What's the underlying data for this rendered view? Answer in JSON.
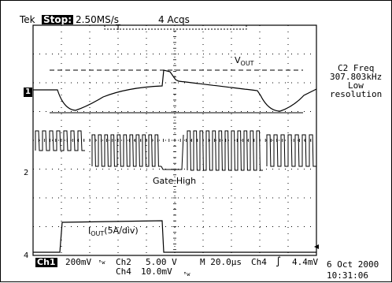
{
  "header": {
    "brand": "Tek",
    "run_state": "Stop:",
    "sample_rate": "2.50MS/s",
    "acqs": "4 Acqs",
    "trigger_marker": "T"
  },
  "right_panel": {
    "meas_title": "C2 Freq",
    "meas_value": "307.803kHz",
    "note_line1": "Low",
    "note_line2": "resolution"
  },
  "annotations": {
    "vout_main": "V",
    "vout_sub": "OUT",
    "gate": "Gate High",
    "iout_main": "I",
    "iout_sub": "OUT",
    "iout_scale": "(5A/div)"
  },
  "channel_markers": {
    "ch1": "1",
    "ch2": "2",
    "ch4": "4"
  },
  "footer": {
    "ch1_label": "Ch1",
    "ch1_scale": "200mV",
    "ch1_bw": "ᴮw",
    "ch2_label": "Ch2",
    "ch2_scale": "5.00 V",
    "ch4_label": "Ch4",
    "ch4_scale": "10.0mV",
    "ch4_bw": "ᴮw",
    "timebase": "M 20.0µs",
    "trigger_src": "Ch4",
    "trigger_slope": "∫",
    "trigger_level": "4.4mV",
    "date": "6 Oct 2000",
    "time": "10:31:06"
  }
}
